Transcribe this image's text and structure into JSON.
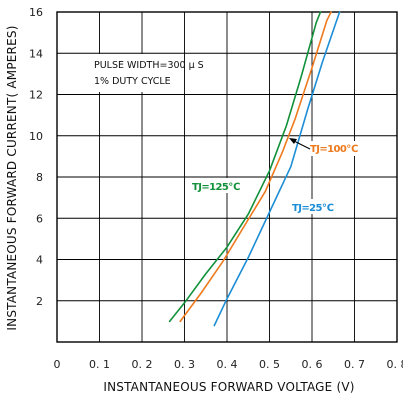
{
  "chart_data": {
    "type": "line",
    "xlabel": "INSTANTANEOUS FORWARD VOLTAGE (V)",
    "ylabel": "INSTANTANEOUS FORWARD CURRENT( AMPERES)",
    "xlim": [
      0,
      0.8
    ],
    "ylim": [
      0,
      16
    ],
    "x_ticks": [
      {
        "v": 0,
        "label": "0"
      },
      {
        "v": 0.1,
        "label": "0. 1"
      },
      {
        "v": 0.2,
        "label": "0. 2"
      },
      {
        "v": 0.3,
        "label": "0. 3"
      },
      {
        "v": 0.4,
        "label": "0. 4"
      },
      {
        "v": 0.5,
        "label": "0. 5"
      },
      {
        "v": 0.6,
        "label": "0. 6"
      },
      {
        "v": 0.7,
        "label": "0. 7"
      },
      {
        "v": 0.8,
        "label": "0. 8"
      }
    ],
    "y_ticks": [
      {
        "v": 2,
        "label": "2"
      },
      {
        "v": 4,
        "label": "4"
      },
      {
        "v": 6,
        "label": "6"
      },
      {
        "v": 8,
        "label": "8"
      },
      {
        "v": 10,
        "label": "10"
      },
      {
        "v": 12,
        "label": "12"
      },
      {
        "v": 14,
        "label": "14"
      },
      {
        "v": 16,
        "label": "16"
      }
    ],
    "grid": true,
    "annotation_lines": [
      "PULSE WIDTH=300 μ S",
      "1% DUTY CYCLE"
    ],
    "series": [
      {
        "name": "TJ=125℃",
        "color": "#12913a",
        "points": [
          [
            0.265,
            1.0
          ],
          [
            0.3,
            1.9
          ],
          [
            0.35,
            3.3
          ],
          [
            0.4,
            4.6
          ],
          [
            0.45,
            6.2
          ],
          [
            0.5,
            8.3
          ],
          [
            0.54,
            10.5
          ],
          [
            0.575,
            12.9
          ],
          [
            0.61,
            15.5
          ],
          [
            0.62,
            16.0
          ]
        ]
      },
      {
        "name": "TJ=100℃",
        "color": "#ee7a1e",
        "points": [
          [
            0.29,
            1.0
          ],
          [
            0.34,
            2.4
          ],
          [
            0.39,
            3.9
          ],
          [
            0.44,
            5.6
          ],
          [
            0.49,
            7.3
          ],
          [
            0.53,
            9.2
          ],
          [
            0.56,
            10.8
          ],
          [
            0.6,
            13.3
          ],
          [
            0.635,
            15.6
          ],
          [
            0.645,
            16.0
          ]
        ]
      },
      {
        "name": "TJ=25℃",
        "color": "#1b8ed6",
        "points": [
          [
            0.37,
            0.8
          ],
          [
            0.4,
            2.1
          ],
          [
            0.45,
            4.1
          ],
          [
            0.5,
            6.3
          ],
          [
            0.55,
            8.5
          ],
          [
            0.59,
            11.3
          ],
          [
            0.625,
            13.6
          ],
          [
            0.665,
            16.0
          ]
        ]
      }
    ],
    "series_labels": [
      {
        "name": "TJ=125℃",
        "color": "#12913a"
      },
      {
        "name": "TJ=100℃",
        "color": "#ee7a1e"
      },
      {
        "name": "TJ=25℃",
        "color": "#1b8ed6"
      }
    ]
  }
}
